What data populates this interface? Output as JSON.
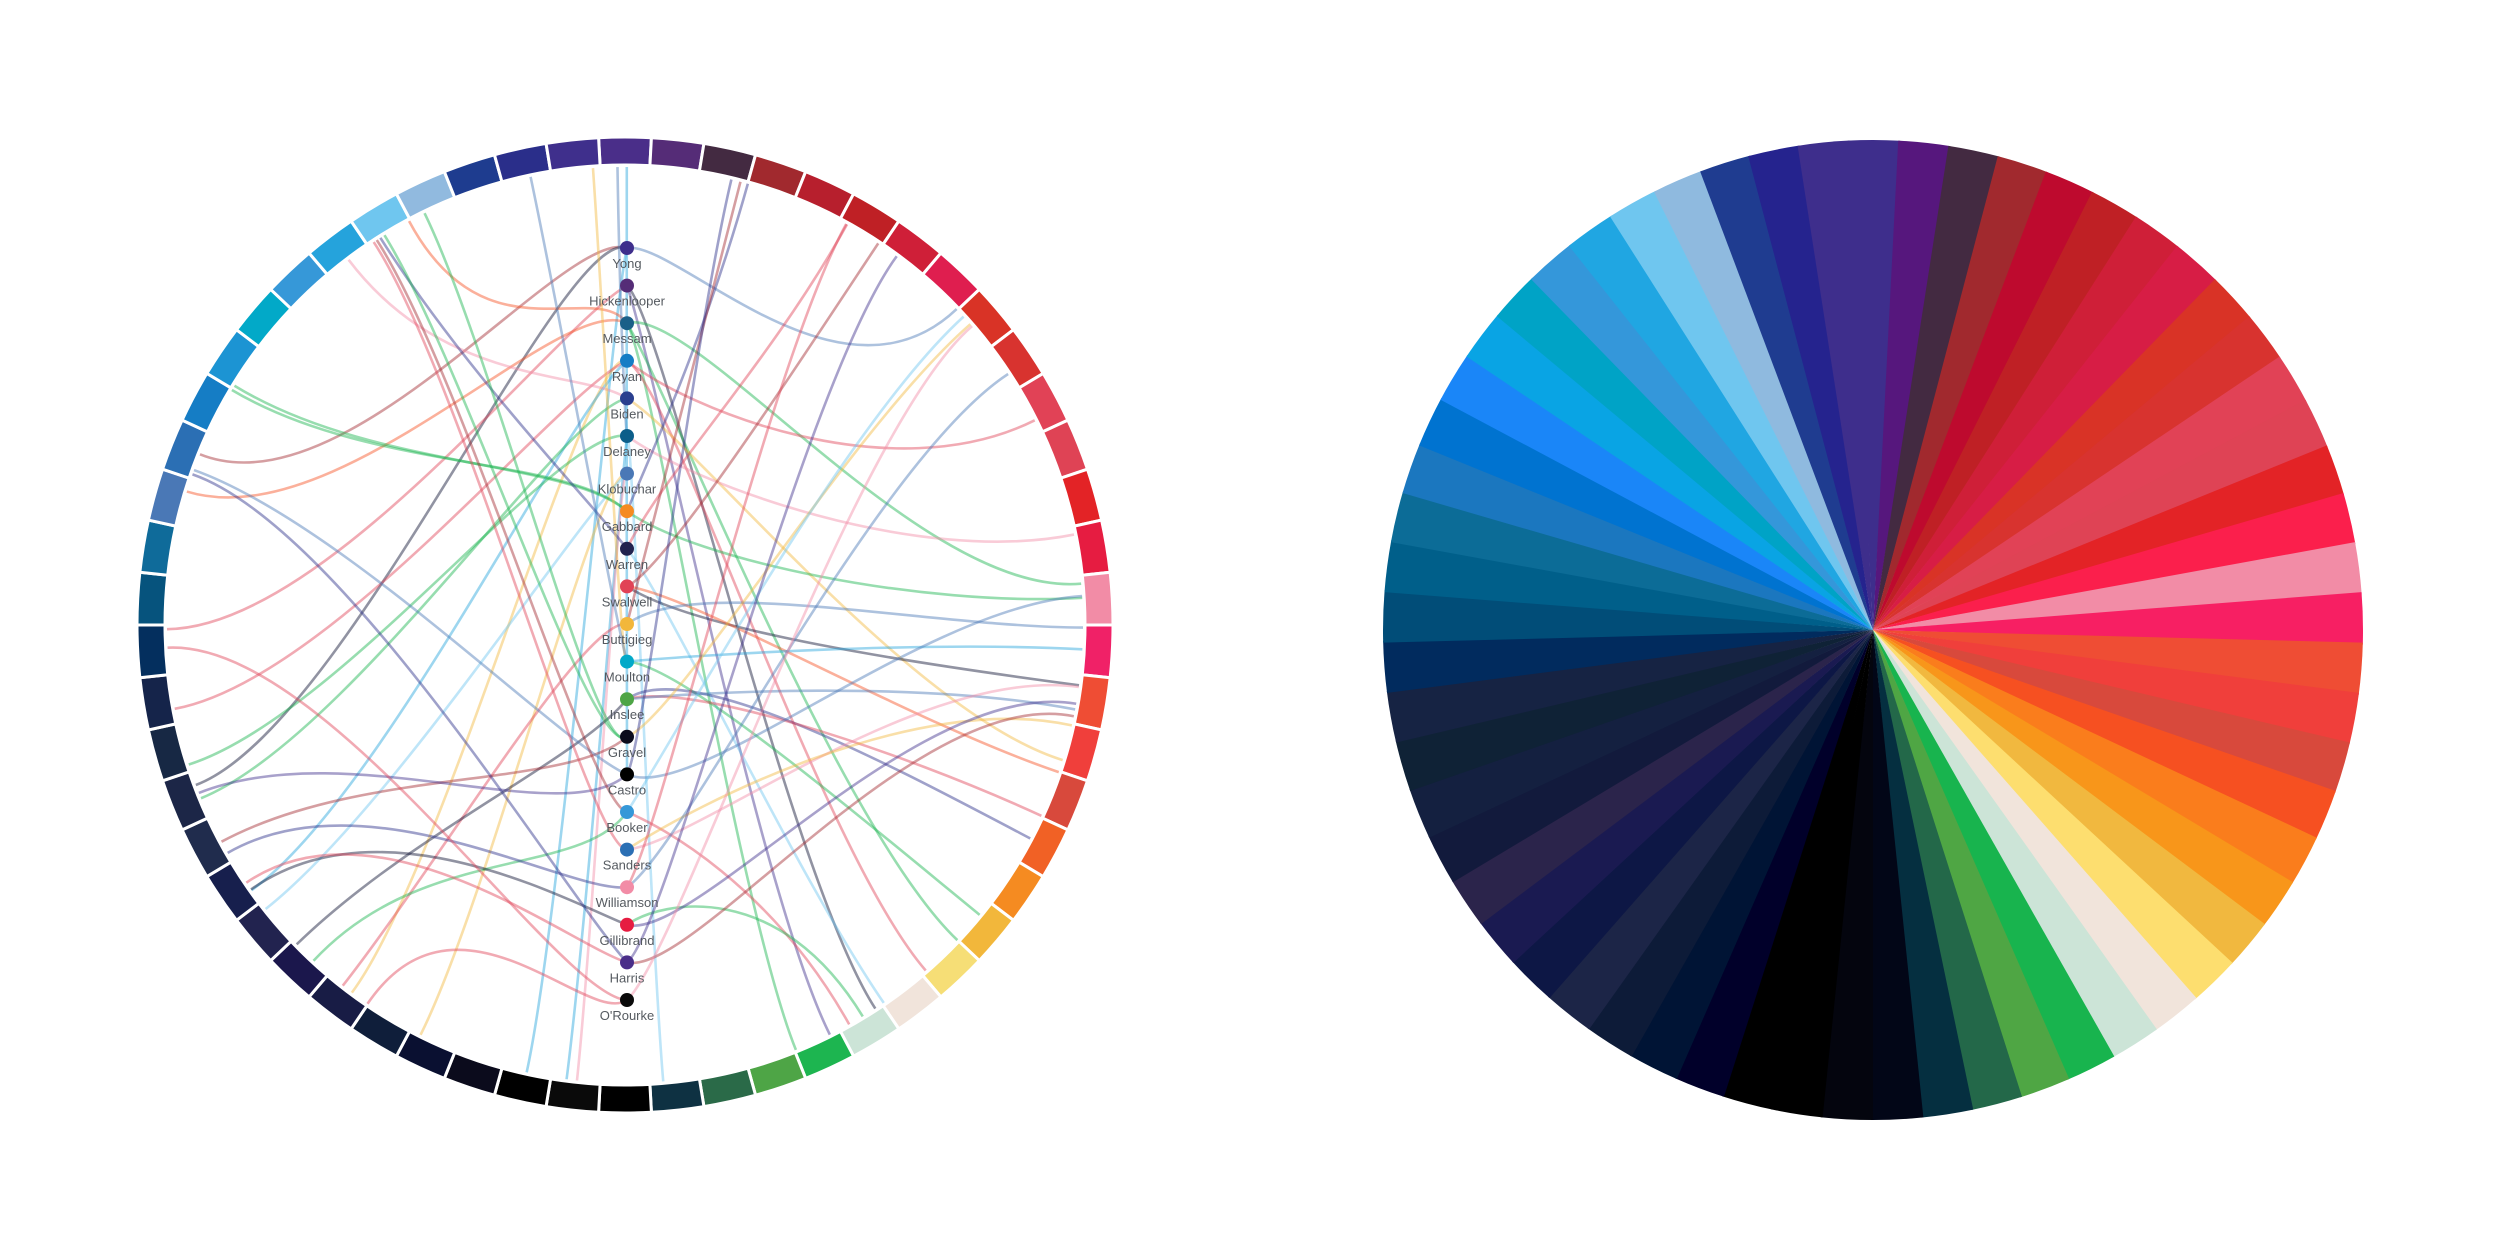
{
  "colors": {
    "ring": [
      "#4A2E89",
      "#552C77",
      "#432A41",
      "#A1292E",
      "#B71F2D",
      "#BF2025",
      "#CF1F38",
      "#DF1E4F",
      "#D93326",
      "#D8332F",
      "#E14256",
      "#DF4355",
      "#E32326",
      "#E61C41",
      "#F28CA6",
      "#F02167",
      "#EF4D34",
      "#F03F3B",
      "#D8493C",
      "#F16125",
      "#F58B21",
      "#F2B73B",
      "#F6DE76",
      "#F1E4DB",
      "#CCE4D7",
      "#1DB550",
      "#4EA546",
      "#2A6A48",
      "#0E3142",
      "#000000",
      "#0A0A0A",
      "#000000",
      "#0B0B1C",
      "#0A1031",
      "#0F1E3A",
      "#181C45",
      "#1B174C",
      "#22234F",
      "#171F4D",
      "#202C4D",
      "#1C2647",
      "#172844",
      "#15244A",
      "#042F5E",
      "#06537D",
      "#0F6B9A",
      "#4A78B6",
      "#2B6FB4",
      "#157DC5",
      "#1C94D3",
      "#02A9C8",
      "#3698D8",
      "#25A3DC",
      "#6FC6EF",
      "#91BADF",
      "#1E3C8F",
      "#2A2E8A",
      "#3F2F8C"
    ],
    "wheel": [
      "#3E2E8C",
      "#56177D",
      "#432A41",
      "#A1292E",
      "#BE0A2E",
      "#BF2025",
      "#CF1F38",
      "#D71D45",
      "#D93326",
      "#D8332F",
      "#E14256",
      "#DF4355",
      "#E32326",
      "#FB1F4C",
      "#F28CA6",
      "#F71F63",
      "#EF4D34",
      "#F03F3B",
      "#D8493C",
      "#F65021",
      "#FA7D1C",
      "#F8961A",
      "#F1B83F",
      "#FDDE6F",
      "#F1E4DB",
      "#CCE4D7",
      "#18B44E",
      "#4FA644",
      "#236849",
      "#052F40",
      "#020617",
      "#04050E",
      "#000000",
      "#000000",
      "#01002A",
      "#001435",
      "#0D1B38",
      "#1C2547",
      "#0D1745",
      "#1A1A51",
      "#2B244B",
      "#121A3C",
      "#142040",
      "#0F2236",
      "#162343",
      "#012B5E",
      "#014D78",
      "#005F8A",
      "#0C6C97",
      "#1B77BF",
      "#0073D0",
      "#1A86F8",
      "#09A4E4",
      "#00A3C6",
      "#3497DA",
      "#20A6E2",
      "#6FC6EF",
      "#8FBADF",
      "#1F3C90",
      "#25238E",
      "#3E2E8C"
    ],
    "ribbon_palette": [
      "#3E2E8C",
      "#A1292E",
      "#E14256",
      "#F65021",
      "#F1B83F",
      "#18B44E",
      "#0A1031",
      "#4A78B6",
      "#6FC6EF",
      "#25A3DC",
      "#2A2E8A",
      "#F28CA6"
    ]
  },
  "candidates": [
    {
      "name": "Yong",
      "color": "#3E2E8C"
    },
    {
      "name": "Hickenlooper",
      "color": "#552C77"
    },
    {
      "name": "Messam",
      "color": "#1A5F88"
    },
    {
      "name": "Ryan",
      "color": "#157DC5"
    },
    {
      "name": "Biden",
      "color": "#2A3F8F"
    },
    {
      "name": "Delaney",
      "color": "#0C5E8A"
    },
    {
      "name": "Klobuchar",
      "color": "#4A78B6"
    },
    {
      "name": "Gabbard",
      "color": "#F58B21"
    },
    {
      "name": "Warren",
      "color": "#22234F"
    },
    {
      "name": "Swalwell",
      "color": "#E14256"
    },
    {
      "name": "Buttigieg",
      "color": "#F2B73B"
    },
    {
      "name": "Moulton",
      "color": "#02A9C8"
    },
    {
      "name": "Inslee",
      "color": "#4EA546"
    },
    {
      "name": "Gravel",
      "color": "#0B0B1C"
    },
    {
      "name": "Castro",
      "color": "#000000"
    },
    {
      "name": "Booker",
      "color": "#3698D8"
    },
    {
      "name": "Sanders",
      "color": "#2B6FB4"
    },
    {
      "name": "Williamson",
      "color": "#F28CA6"
    },
    {
      "name": "Gillibrand",
      "color": "#E61C41"
    },
    {
      "name": "Harris",
      "color": "#4A2E89"
    },
    {
      "name": "O'Rourke",
      "color": "#0A0A0A"
    }
  ]
}
